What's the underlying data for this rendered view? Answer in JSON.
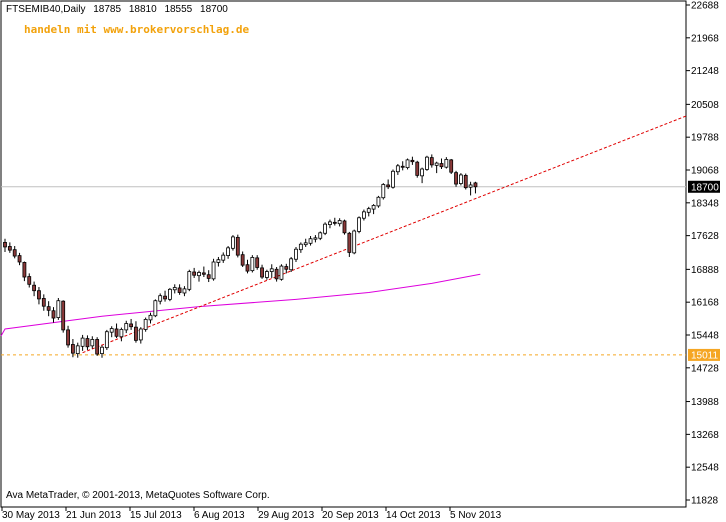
{
  "header": {
    "symbol": "FTSEMIB40,Daily",
    "open": "18785",
    "high": "18810",
    "low": "18555",
    "close": "18700"
  },
  "promo_text": "handeln mit www.brokervorschlag.de",
  "copyright": "Ava MetaTrader, © 2001-2013, MetaQuotes Software Corp.",
  "colors": {
    "background": "#ffffff",
    "candle_up": "#ffffff",
    "candle_down": "#8b3a3a",
    "candle_outline": "#000000",
    "trendline": "#e00000",
    "moving_average": "#dd00dd",
    "support_line": "#f5a623",
    "current_price_line": "#c0c0c0"
  },
  "chart_data": {
    "type": "candlestick",
    "y_range": [
      11828,
      22688
    ],
    "y_ticks": [
      22688,
      21968,
      21248,
      20508,
      19788,
      19068,
      18348,
      17628,
      16888,
      16168,
      15448,
      14728,
      13988,
      13268,
      12548,
      11828
    ],
    "x_labels": [
      "30 May 2013",
      "21 Jun 2013",
      "15 Jul 2013",
      "6 Aug 2013",
      "29 Aug 2013",
      "20 Sep 2013",
      "14 Oct 2013",
      "5 Nov 2013"
    ],
    "current_price": 18700,
    "support_level": 15011,
    "ohlc": [
      [
        17480,
        17560,
        17270,
        17380
      ],
      [
        17390,
        17480,
        17250,
        17310
      ],
      [
        17320,
        17400,
        17130,
        17180
      ],
      [
        17190,
        17250,
        16980,
        17050
      ],
      [
        17040,
        17060,
        16630,
        16720
      ],
      [
        16730,
        16800,
        16490,
        16560
      ],
      [
        16540,
        16620,
        16300,
        16420
      ],
      [
        16420,
        16500,
        16120,
        16240
      ],
      [
        16250,
        16340,
        15980,
        16080
      ],
      [
        16070,
        16190,
        15860,
        15990
      ],
      [
        15980,
        16060,
        15720,
        15820
      ],
      [
        15830,
        16260,
        15780,
        16200
      ],
      [
        16190,
        16210,
        15500,
        15560
      ],
      [
        15560,
        15650,
        15170,
        15230
      ],
      [
        15240,
        15360,
        14960,
        15050
      ],
      [
        15040,
        15280,
        14950,
        15210
      ],
      [
        15200,
        15450,
        15100,
        15380
      ],
      [
        15370,
        15440,
        15120,
        15190
      ],
      [
        15210,
        15420,
        15150,
        15350
      ],
      [
        15350,
        15400,
        14990,
        15030
      ],
      [
        15040,
        15220,
        14950,
        15180
      ],
      [
        15170,
        15560,
        15120,
        15520
      ],
      [
        15510,
        15640,
        15400,
        15590
      ],
      [
        15580,
        15700,
        15380,
        15420
      ],
      [
        15410,
        15610,
        15310,
        15570
      ],
      [
        15560,
        15760,
        15490,
        15700
      ],
      [
        15690,
        15800,
        15560,
        15630
      ],
      [
        15620,
        15750,
        15280,
        15330
      ],
      [
        15340,
        15620,
        15260,
        15580
      ],
      [
        15570,
        15830,
        15520,
        15790
      ],
      [
        15780,
        15940,
        15700,
        15880
      ],
      [
        15870,
        16230,
        15840,
        16200
      ],
      [
        16190,
        16360,
        16120,
        16310
      ],
      [
        16300,
        16420,
        16180,
        16240
      ],
      [
        16230,
        16480,
        16190,
        16450
      ],
      [
        16440,
        16560,
        16360,
        16490
      ],
      [
        16480,
        16560,
        16330,
        16380
      ],
      [
        16370,
        16520,
        16300,
        16460
      ],
      [
        16450,
        16880,
        16410,
        16840
      ],
      [
        16830,
        16920,
        16700,
        16760
      ],
      [
        16750,
        16860,
        16620,
        16820
      ],
      [
        16810,
        16950,
        16720,
        16780
      ],
      [
        16770,
        16870,
        16610,
        16690
      ],
      [
        16680,
        17120,
        16640,
        17050
      ],
      [
        17040,
        17160,
        16950,
        17100
      ],
      [
        17090,
        17260,
        17030,
        17200
      ],
      [
        17190,
        17400,
        17120,
        17360
      ],
      [
        17350,
        17640,
        17300,
        17600
      ],
      [
        17590,
        17650,
        17150,
        17200
      ],
      [
        17210,
        17280,
        16940,
        16980
      ],
      [
        16990,
        17100,
        16800,
        16850
      ],
      [
        16860,
        17200,
        16820,
        17150
      ],
      [
        17140,
        17200,
        16880,
        16930
      ],
      [
        16920,
        16990,
        16680,
        16720
      ],
      [
        16710,
        16880,
        16660,
        16840
      ],
      [
        16840,
        17000,
        16700,
        16900
      ],
      [
        16890,
        16940,
        16620,
        16680
      ],
      [
        16670,
        17000,
        16640,
        16960
      ],
      [
        16950,
        17010,
        16800,
        16890
      ],
      [
        16880,
        17160,
        16830,
        17120
      ],
      [
        17110,
        17380,
        17050,
        17330
      ],
      [
        17320,
        17480,
        17250,
        17440
      ],
      [
        17430,
        17560,
        17380,
        17470
      ],
      [
        17460,
        17620,
        17410,
        17560
      ],
      [
        17550,
        17640,
        17480,
        17580
      ],
      [
        17570,
        17720,
        17530,
        17690
      ],
      [
        17680,
        17920,
        17640,
        17880
      ],
      [
        17870,
        17980,
        17790,
        17930
      ],
      [
        17920,
        18020,
        17850,
        17900
      ],
      [
        17890,
        18010,
        17830,
        17960
      ],
      [
        17950,
        17980,
        17650,
        17690
      ],
      [
        17680,
        17710,
        17160,
        17260
      ],
      [
        17250,
        17760,
        17220,
        17730
      ],
      [
        17720,
        18050,
        17680,
        18020
      ],
      [
        18010,
        18200,
        17960,
        18150
      ],
      [
        18140,
        18260,
        18050,
        18220
      ],
      [
        18210,
        18320,
        18100,
        18290
      ],
      [
        18280,
        18500,
        18240,
        18470
      ],
      [
        18460,
        18780,
        18420,
        18750
      ],
      [
        18740,
        18860,
        18650,
        18700
      ],
      [
        18690,
        19080,
        18660,
        19040
      ],
      [
        19030,
        19200,
        18960,
        19160
      ],
      [
        19150,
        19260,
        19060,
        19130
      ],
      [
        19120,
        19320,
        19080,
        19290
      ],
      [
        19280,
        19360,
        19180,
        19250
      ],
      [
        19240,
        19270,
        18900,
        18950
      ],
      [
        18940,
        19120,
        18780,
        19090
      ],
      [
        19080,
        19380,
        19050,
        19350
      ],
      [
        19340,
        19410,
        19120,
        19180
      ],
      [
        19170,
        19250,
        19000,
        19220
      ],
      [
        19210,
        19320,
        19090,
        19140
      ],
      [
        19130,
        19350,
        19100,
        19300
      ],
      [
        19290,
        19310,
        18980,
        19020
      ],
      [
        19010,
        19050,
        18700,
        18760
      ],
      [
        18770,
        19000,
        18730,
        18960
      ],
      [
        18950,
        18990,
        18640,
        18680
      ],
      [
        18690,
        18810,
        18510,
        18740
      ],
      [
        18785,
        18810,
        18555,
        18700
      ]
    ],
    "moving_average": {
      "name": "",
      "start_index": 0,
      "end_index": 98,
      "points": [
        [
          0,
          15580
        ],
        [
          20,
          15860
        ],
        [
          40,
          16070
        ],
        [
          60,
          16230
        ],
        [
          75,
          16380
        ],
        [
          88,
          16580
        ],
        [
          98,
          16780
        ]
      ]
    },
    "trendline": {
      "points": [
        [
          "21 Jun 2013",
          15060
        ],
        [
          "5 Nov 2013",
          18440
        ]
      ],
      "extends_right": true
    }
  }
}
